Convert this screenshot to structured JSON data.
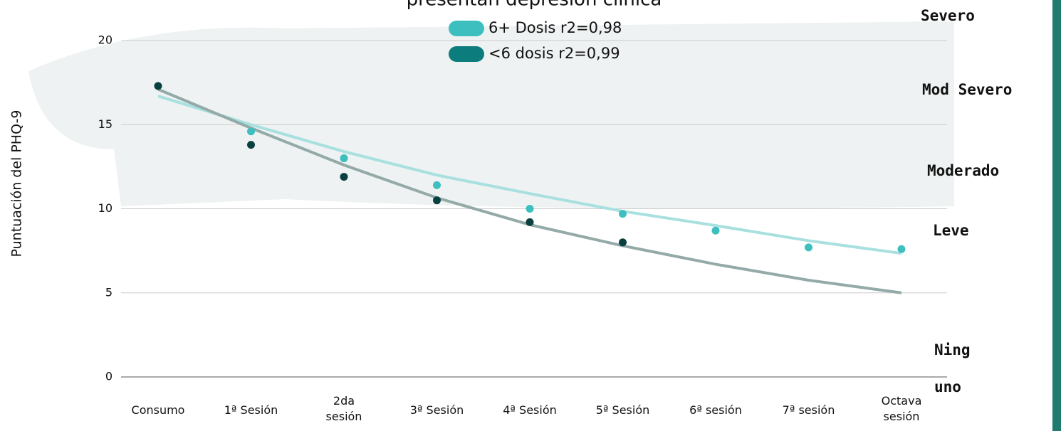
{
  "chart_data": {
    "type": "scatter",
    "title": "presentan depresión clínica",
    "y_label": "Puntuación del PHQ-9",
    "categories": [
      "Consumo",
      "1ª Sesión",
      "2da\nsesión",
      "3ª Sesión",
      "4ª Sesión",
      "5ª Sesión",
      "6ª sesión",
      "7ª sesión",
      "Octava\nsesión"
    ],
    "series": [
      {
        "name": "6+ Dosis r2=0,98",
        "color": "#3dbfbf",
        "trend_color": "#a8e0e0",
        "values": [
          null,
          14.6,
          13.0,
          11.4,
          10.0,
          9.7,
          8.7,
          7.7,
          7.6
        ],
        "trend": [
          16.7,
          15.0,
          13.4,
          12.0,
          10.9,
          9.85,
          9.0,
          8.1,
          7.35
        ]
      },
      {
        "name": "<6 dosis r2=0,99",
        "color": "#0b4040",
        "legend_color": "#0d7c7c",
        "trend_color": "#93aaa8",
        "values": [
          17.3,
          13.8,
          11.9,
          10.5,
          9.2,
          8.0,
          null,
          null,
          null
        ],
        "trend": [
          17.1,
          14.8,
          12.6,
          10.65,
          9.05,
          7.8,
          6.7,
          5.75,
          5.0
        ]
      }
    ],
    "ylim": [
      0,
      20
    ],
    "yticks": [
      0,
      5,
      10,
      15,
      20
    ],
    "grid": true,
    "levels": [
      "Severo",
      "Mod Severo",
      "Moderado",
      "Leve",
      "Ning\nuno"
    ]
  }
}
